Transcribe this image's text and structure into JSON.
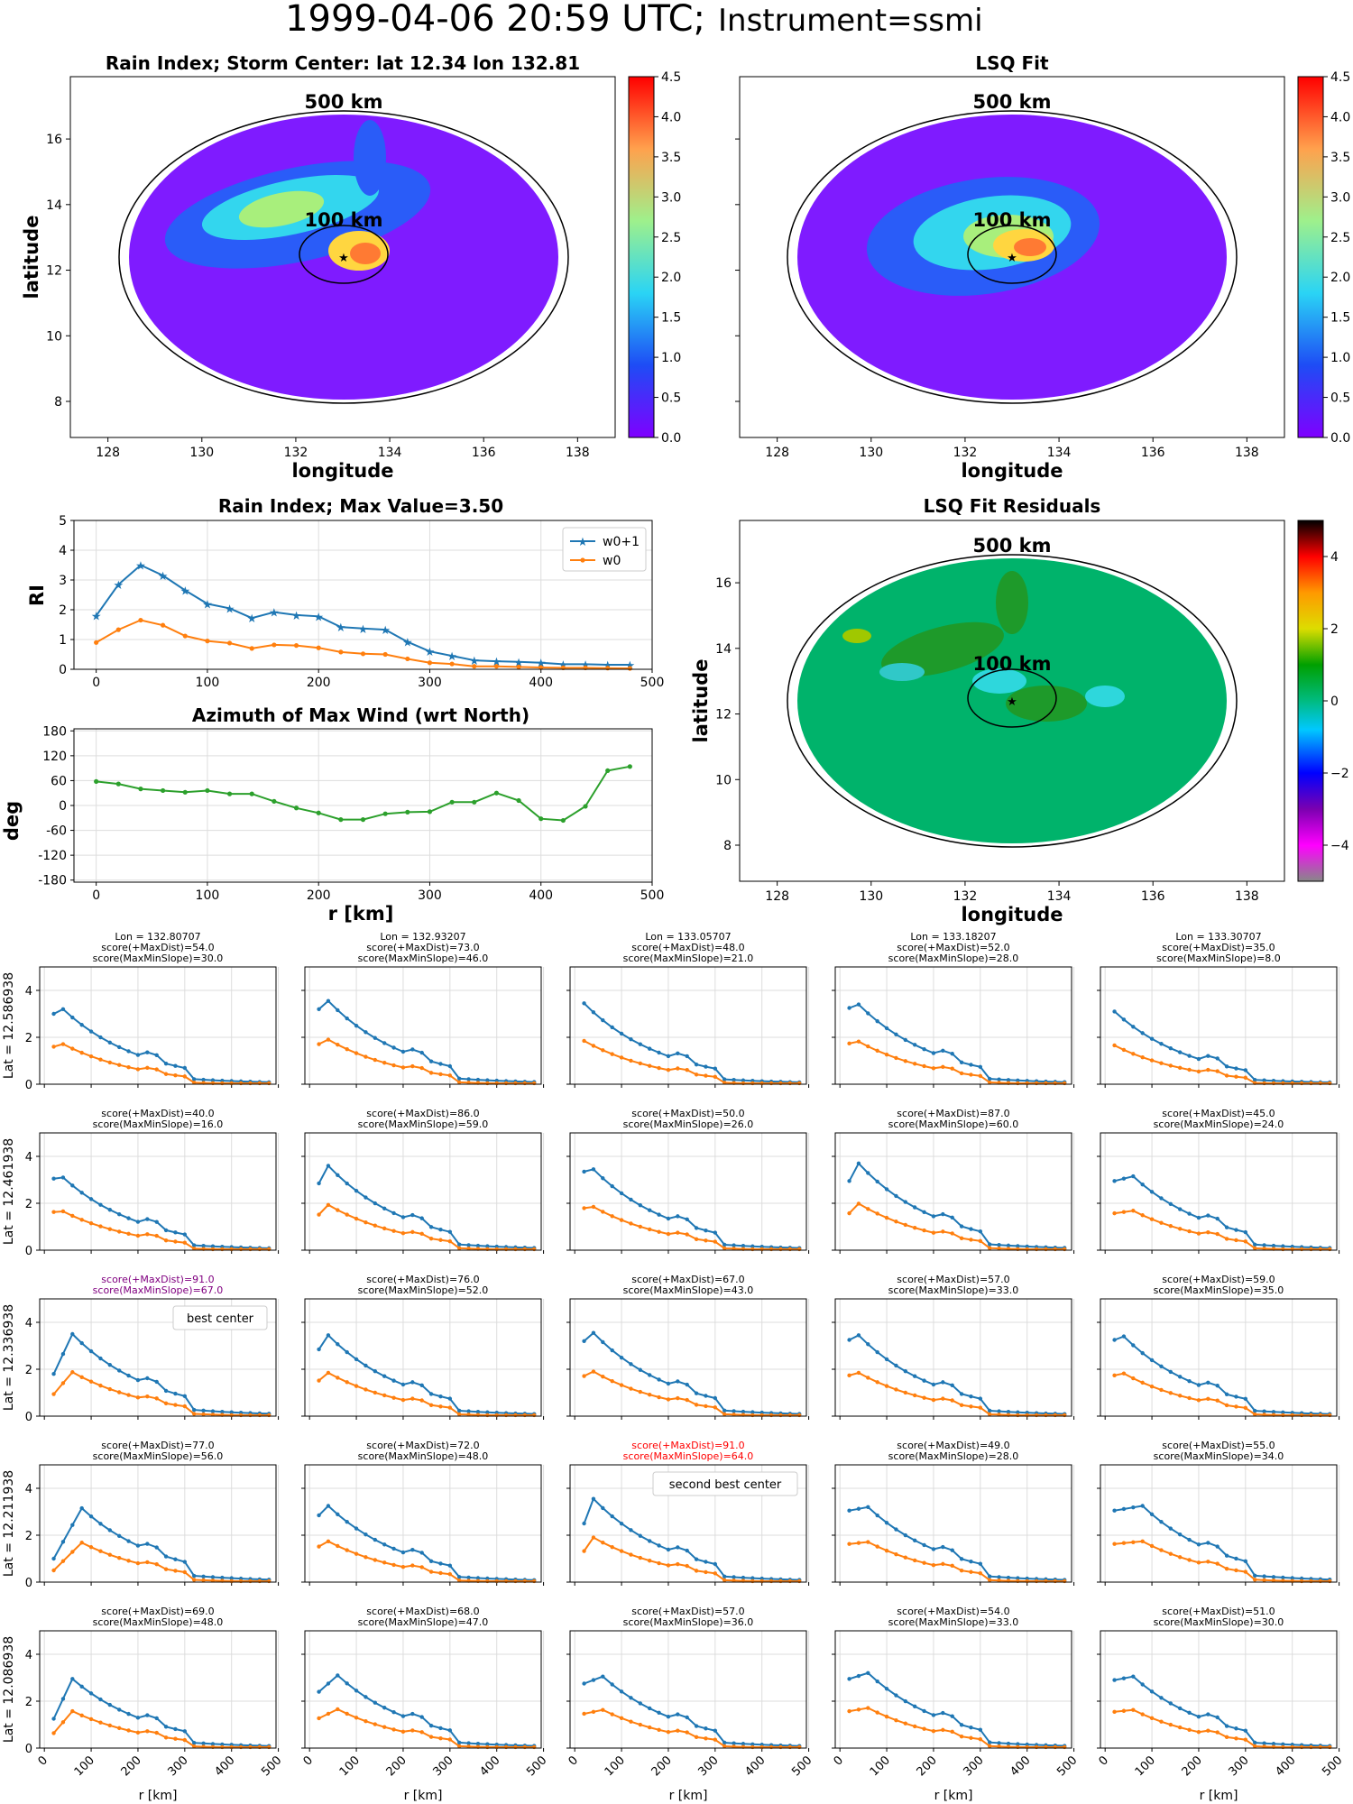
{
  "suptitle": {
    "main": "1999-04-06 20:59 UTC;",
    "instrument": "Instrument=ssmi"
  },
  "panels": {
    "rain_index_map": {
      "title": "Rain Index; Storm Center: lat 12.34 lon 132.81",
      "xlabel": "longitude",
      "ylabel": "latitude"
    },
    "lsq_fit_map": {
      "title": "LSQ Fit",
      "xlabel": "longitude"
    },
    "residuals_map": {
      "title": "LSQ Fit Residuals",
      "xlabel": "longitude",
      "ylabel": "latitude"
    },
    "ring_labels": {
      "outer": "500 km",
      "inner": "100 km"
    }
  },
  "colors": {
    "w0_plus_1": "#1f77b4",
    "w0": "#ff7f0e",
    "azimuth": "#2ca02c",
    "best": "#800080",
    "second": "#ff0000"
  },
  "chart_data": [
    {
      "type": "heatmap",
      "name": "rain_index_map",
      "xticks": [
        "128",
        "130",
        "132",
        "134",
        "136",
        "138"
      ],
      "yticks": [
        "8",
        "10",
        "12",
        "14",
        "16"
      ],
      "xlim": [
        127.2,
        138.8
      ],
      "ylim": [
        6.9,
        17.9
      ],
      "colorbar": {
        "min": 0,
        "max": 4.5,
        "ticks": [
          "0.0",
          "0.5",
          "1.0",
          "1.5",
          "2.0",
          "2.5",
          "3.0",
          "3.5",
          "4.0",
          "4.5"
        ],
        "colormap": "rainbow"
      },
      "storm_center": {
        "lat": 12.34,
        "lon": 132.81
      }
    },
    {
      "type": "heatmap",
      "name": "lsq_fit_map",
      "xticks": [
        "128",
        "130",
        "132",
        "134",
        "136",
        "138"
      ],
      "xlim": [
        127.2,
        138.8
      ],
      "ylim": [
        6.9,
        17.9
      ],
      "colorbar": {
        "min": 0,
        "max": 4.5,
        "ticks": [
          "0.0",
          "0.5",
          "1.0",
          "1.5",
          "2.0",
          "2.5",
          "3.0",
          "3.5",
          "4.0",
          "4.5"
        ],
        "colormap": "rainbow"
      }
    },
    {
      "type": "line",
      "name": "rain_index_profile",
      "title": "Rain Index; Max Value=3.50",
      "ylabel": "RI",
      "xlim": [
        -20,
        500
      ],
      "ylim": [
        0,
        5
      ],
      "xticks": [
        "0",
        "100",
        "200",
        "300",
        "400",
        "500"
      ],
      "yticks": [
        "0",
        "1",
        "2",
        "3",
        "4",
        "5"
      ],
      "grid": true,
      "legend": "top-right",
      "x": [
        0,
        20,
        40,
        60,
        80,
        100,
        120,
        140,
        160,
        180,
        200,
        220,
        240,
        260,
        280,
        300,
        320,
        340,
        360,
        380,
        400,
        420,
        440,
        460,
        480
      ],
      "series": [
        {
          "name": "w0+1",
          "marker": "star",
          "values": [
            1.8,
            2.85,
            3.5,
            3.15,
            2.65,
            2.2,
            2.05,
            1.72,
            1.92,
            1.82,
            1.78,
            1.42,
            1.37,
            1.33,
            0.92,
            0.6,
            0.45,
            0.3,
            0.27,
            0.25,
            0.22,
            0.17,
            0.17,
            0.15,
            0.15
          ]
        },
        {
          "name": "w0",
          "marker": "dot",
          "values": [
            0.9,
            1.33,
            1.65,
            1.48,
            1.12,
            0.95,
            0.88,
            0.7,
            0.82,
            0.8,
            0.72,
            0.58,
            0.52,
            0.5,
            0.35,
            0.22,
            0.18,
            0.1,
            0.1,
            0.08,
            0.06,
            0.05,
            0.05,
            0.04,
            0.03
          ]
        }
      ]
    },
    {
      "type": "line",
      "name": "azimuth_profile",
      "title": "Azimuth of Max Wind (wrt North)",
      "xlabel": "r [km]",
      "ylabel": "deg",
      "xlim": [
        -20,
        500
      ],
      "ylim": [
        -185,
        185
      ],
      "xticks": [
        "0",
        "100",
        "200",
        "300",
        "400",
        "500"
      ],
      "yticks": [
        "180",
        "120",
        "60",
        "0",
        "-60",
        "-120",
        "-180"
      ],
      "grid": true,
      "x": [
        0,
        20,
        40,
        60,
        80,
        100,
        120,
        140,
        160,
        180,
        200,
        220,
        240,
        260,
        280,
        300,
        320,
        340,
        360,
        380,
        400,
        420,
        440,
        460,
        480
      ],
      "values": [
        58,
        52,
        40,
        36,
        32,
        36,
        28,
        28,
        10,
        -6,
        -18,
        -34,
        -34,
        -20,
        -16,
        -15,
        8,
        8,
        30,
        12,
        -32,
        -36,
        -2,
        84,
        94
      ]
    },
    {
      "type": "heatmap",
      "name": "residuals_map",
      "xticks": [
        "128",
        "130",
        "132",
        "134",
        "136",
        "138"
      ],
      "yticks": [
        "8",
        "10",
        "12",
        "14",
        "16"
      ],
      "xlim": [
        127.2,
        138.8
      ],
      "ylim": [
        6.9,
        17.9
      ],
      "colorbar": {
        "min": -5,
        "max": 5,
        "ticks": [
          "4",
          "2",
          "0",
          "−2",
          "−4"
        ],
        "colormap": "spectral"
      }
    },
    {
      "type": "line",
      "name": "center_grid",
      "xlabel": "r [km]",
      "xlim": [
        -10,
        495
      ],
      "ylim": [
        0,
        5
      ],
      "xticks": [
        "0",
        "100",
        "200",
        "300",
        "400",
        "500"
      ],
      "yticks": [
        "0",
        "2",
        "4"
      ],
      "grid": true,
      "columns": [
        "Lon = 132.80707",
        "Lon = 132.93207",
        "Lon = 133.05707",
        "Lon = 133.18207",
        "Lon = 133.30707"
      ],
      "rows": [
        "Lat = 12.586938",
        "Lat = 12.461938",
        "Lat = 12.336938",
        "Lat = 12.211938",
        "Lat = 12.086938"
      ],
      "cells": [
        [
          {
            "maxdist": "score(+MaxDist)=54.0",
            "slope": "score(MaxMinSlope)=30.0",
            "peak": 3.2,
            "ppos": 1,
            "start": 3.0,
            "plat": 1.45
          },
          {
            "maxdist": "score(+MaxDist)=73.0",
            "slope": "score(MaxMinSlope)=46.0",
            "peak": 3.55,
            "ppos": 1,
            "start": 3.2,
            "plat": 1.5
          },
          {
            "maxdist": "score(+MaxDist)=48.0",
            "slope": "score(MaxMinSlope)=21.0",
            "peak": 3.45,
            "ppos": 0,
            "start": 3.45,
            "plat": 1.45
          },
          {
            "maxdist": "score(+MaxDist)=52.0",
            "slope": "score(MaxMinSlope)=28.0",
            "peak": 3.4,
            "ppos": 1,
            "start": 3.25,
            "plat": 1.5
          },
          {
            "maxdist": "score(+MaxDist)=35.0",
            "slope": "score(MaxMinSlope)=8.0",
            "peak": 3.1,
            "ppos": 0,
            "start": 3.1,
            "plat": 1.55
          }
        ],
        [
          {
            "maxdist": "score(+MaxDist)=40.0",
            "slope": "score(MaxMinSlope)=16.0",
            "peak": 3.1,
            "ppos": 1,
            "start": 3.05,
            "plat": 1.6
          },
          {
            "maxdist": "score(+MaxDist)=86.0",
            "slope": "score(MaxMinSlope)=59.0",
            "peak": 3.6,
            "ppos": 1,
            "start": 2.85,
            "plat": 1.55
          },
          {
            "maxdist": "score(+MaxDist)=50.0",
            "slope": "score(MaxMinSlope)=26.0",
            "peak": 3.45,
            "ppos": 1,
            "start": 3.35,
            "plat": 1.5
          },
          {
            "maxdist": "score(+MaxDist)=87.0",
            "slope": "score(MaxMinSlope)=60.0",
            "peak": 3.7,
            "ppos": 1,
            "start": 2.95,
            "plat": 1.6
          },
          {
            "maxdist": "score(+MaxDist)=45.0",
            "slope": "score(MaxMinSlope)=24.0",
            "peak": 3.15,
            "ppos": 2,
            "start": 2.95,
            "plat": 1.55
          }
        ],
        [
          {
            "maxdist": "score(+MaxDist)=91.0",
            "slope": "score(MaxMinSlope)=67.0",
            "peak": 3.5,
            "ppos": 2,
            "start": 1.8,
            "plat": 1.8,
            "highlight": "best",
            "legend": "best center"
          },
          {
            "maxdist": "score(+MaxDist)=76.0",
            "slope": "score(MaxMinSlope)=52.0",
            "peak": 3.45,
            "ppos": 1,
            "start": 2.85,
            "plat": 1.75
          },
          {
            "maxdist": "score(+MaxDist)=67.0",
            "slope": "score(MaxMinSlope)=43.0",
            "peak": 3.55,
            "ppos": 1,
            "start": 3.2,
            "plat": 1.6
          },
          {
            "maxdist": "score(+MaxDist)=57.0",
            "slope": "score(MaxMinSlope)=33.0",
            "peak": 3.45,
            "ppos": 1,
            "start": 3.25,
            "plat": 1.6
          },
          {
            "maxdist": "score(+MaxDist)=59.0",
            "slope": "score(MaxMinSlope)=35.0",
            "peak": 3.4,
            "ppos": 1,
            "start": 3.25,
            "plat": 1.55
          }
        ],
        [
          {
            "maxdist": "score(+MaxDist)=77.0",
            "slope": "score(MaxMinSlope)=56.0",
            "peak": 3.15,
            "ppos": 3,
            "start": 1.0,
            "plat": 2.0
          },
          {
            "maxdist": "score(+MaxDist)=72.0",
            "slope": "score(MaxMinSlope)=48.0",
            "peak": 3.25,
            "ppos": 1,
            "start": 2.85,
            "plat": 1.75
          },
          {
            "maxdist": "score(+MaxDist)=91.0",
            "slope": "score(MaxMinSlope)=64.0",
            "peak": 3.55,
            "ppos": 1,
            "start": 2.5,
            "plat": 2.2,
            "highlight": "second",
            "legend": "second best center"
          },
          {
            "maxdist": "score(+MaxDist)=49.0",
            "slope": "score(MaxMinSlope)=28.0",
            "peak": 3.2,
            "ppos": 2,
            "start": 3.05,
            "plat": 1.8
          },
          {
            "maxdist": "score(+MaxDist)=55.0",
            "slope": "score(MaxMinSlope)=34.0",
            "peak": 3.25,
            "ppos": 3,
            "start": 3.05,
            "plat": 1.8
          }
        ],
        [
          {
            "maxdist": "score(+MaxDist)=69.0",
            "slope": "score(MaxMinSlope)=48.0",
            "peak": 2.95,
            "ppos": 2,
            "start": 1.25,
            "plat": 2.05
          },
          {
            "maxdist": "score(+MaxDist)=68.0",
            "slope": "score(MaxMinSlope)=47.0",
            "peak": 3.1,
            "ppos": 2,
            "start": 2.4,
            "plat": 2.05
          },
          {
            "maxdist": "score(+MaxDist)=57.0",
            "slope": "score(MaxMinSlope)=36.0",
            "peak": 3.05,
            "ppos": 2,
            "start": 2.75,
            "plat": 1.95
          },
          {
            "maxdist": "score(+MaxDist)=54.0",
            "slope": "score(MaxMinSlope)=33.0",
            "peak": 3.2,
            "ppos": 2,
            "start": 2.95,
            "plat": 2.0
          },
          {
            "maxdist": "score(+MaxDist)=51.0",
            "slope": "score(MaxMinSlope)=30.0",
            "peak": 3.05,
            "ppos": 2,
            "start": 2.9,
            "plat": 2.0
          }
        ]
      ]
    }
  ]
}
